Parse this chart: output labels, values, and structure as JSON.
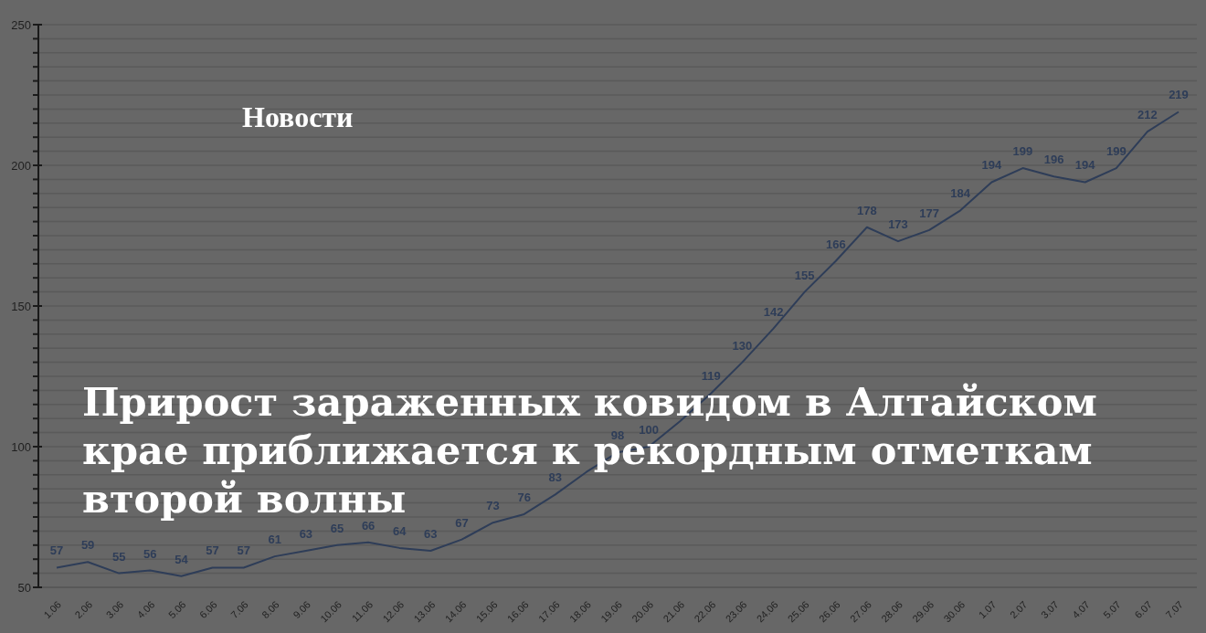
{
  "chart_data": {
    "type": "line",
    "title": "Прирост зараженных ковидом в Алтайском крае приближается к рекордным отметкам второй волны",
    "annotations": [
      "Новости"
    ],
    "categories": [
      "1.06",
      "2.06",
      "3.06",
      "4.06",
      "5.06",
      "6.06",
      "7.06",
      "8.06",
      "9.06",
      "10.06",
      "11.06",
      "12.06",
      "13.06",
      "14.06",
      "15.06",
      "16.06",
      "17.06",
      "18.06",
      "19.06",
      "20.06",
      "21.06",
      "22.06",
      "23.06",
      "24.06",
      "25.06",
      "26.06",
      "27.06",
      "28.06",
      "29.06",
      "30.06",
      "1.07",
      "2.07",
      "3.07",
      "4.07",
      "5.07",
      "6.07",
      "7.07"
    ],
    "series": [
      {
        "color": "#2e3d58",
        "values": [
          57,
          59,
          55,
          56,
          54,
          57,
          57,
          61,
          63,
          65,
          66,
          64,
          63,
          67,
          73,
          76,
          83,
          91,
          98,
          100,
          109,
          119,
          130,
          142,
          155,
          166,
          178,
          173,
          177,
          184,
          194,
          199,
          196,
          194,
          199,
          212,
          219
        ],
        "value_labels": [
          "57",
          "59",
          "55",
          "56",
          "54",
          "57",
          "57",
          "61",
          "63",
          "65",
          "66",
          "64",
          "63",
          "67",
          "73",
          "76",
          "83",
          null,
          "98",
          "100",
          null,
          "119",
          "130",
          "142",
          "155",
          "166",
          "178",
          "173",
          "177",
          "184",
          "194",
          "199",
          "196",
          "194",
          "199",
          "212",
          "219"
        ]
      }
    ],
    "ylim": [
      50,
      250
    ],
    "yticks": [
      50,
      {
        "value": 55,
        "label": null
      },
      {
        "value": 60,
        "label": null
      },
      {
        "value": 65,
        "label": null
      },
      {
        "value": 70,
        "label": null
      },
      {
        "value": 75,
        "label": null
      },
      {
        "value": 80,
        "label": null
      },
      {
        "value": 85,
        "label": null
      },
      {
        "value": 90,
        "label": null
      },
      {
        "value": 95,
        "label": null
      },
      100,
      {
        "value": 105,
        "label": null
      },
      {
        "value": 110,
        "label": null
      },
      {
        "value": 115,
        "label": null
      },
      {
        "value": 120,
        "label": null
      },
      {
        "value": 125,
        "label": null
      },
      {
        "value": 130,
        "label": null
      },
      {
        "value": 135,
        "label": null
      },
      {
        "value": 140,
        "label": null
      },
      {
        "value": 145,
        "label": null
      },
      150,
      {
        "value": 155,
        "label": null
      },
      {
        "value": 160,
        "label": null
      },
      {
        "value": 165,
        "label": null
      },
      {
        "value": 170,
        "label": null
      },
      {
        "value": 175,
        "label": null
      },
      {
        "value": 180,
        "label": null
      },
      {
        "value": 185,
        "label": null
      },
      {
        "value": 190,
        "label": null
      },
      {
        "value": 195,
        "label": null
      },
      200,
      {
        "value": 205,
        "label": null
      },
      {
        "value": 210,
        "label": null
      },
      {
        "value": 215,
        "label": null
      },
      {
        "value": 220,
        "label": null
      },
      {
        "value": 225,
        "label": null
      },
      {
        "value": 230,
        "label": null
      },
      {
        "value": 235,
        "label": null
      },
      {
        "value": 240,
        "label": null
      },
      {
        "value": 245,
        "label": null
      },
      250
    ],
    "grid": "y",
    "marker": "none"
  }
}
